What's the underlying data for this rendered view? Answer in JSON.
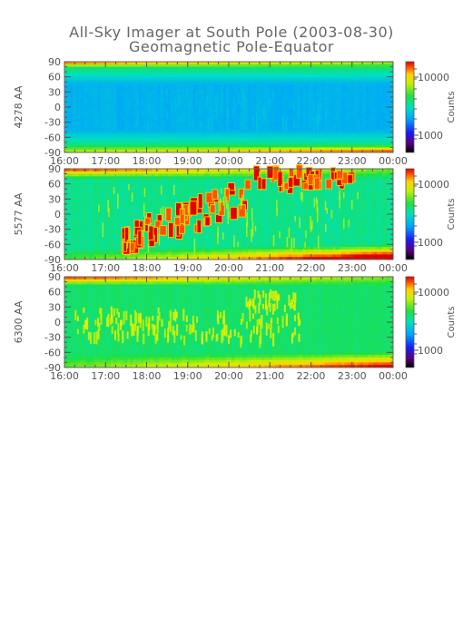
{
  "header": {
    "title": "All-Sky Imager at South Pole (2003-08-30)",
    "subtitle": "Geomagnetic Pole-Equator"
  },
  "chart_data": [
    {
      "type": "heatmap",
      "ylabel": "4278 AA",
      "x_ticks": [
        "16:00",
        "17:00",
        "18:00",
        "19:00",
        "20:00",
        "21:00",
        "22:00",
        "23:00",
        "00:00"
      ],
      "y_ticks": [
        90,
        60,
        30,
        0,
        -30,
        -60,
        -90
      ],
      "ylim": [
        -90,
        90
      ],
      "colorbar": {
        "label": "Counts",
        "ticks": [
          "10000",
          "1000"
        ]
      }
    },
    {
      "type": "heatmap",
      "ylabel": "5577 AA",
      "x_ticks": [
        "16:00",
        "17:00",
        "18:00",
        "19:00",
        "20:00",
        "21:00",
        "22:00",
        "23:00",
        "00:00"
      ],
      "y_ticks": [
        90,
        60,
        30,
        0,
        -30,
        -60,
        -90
      ],
      "ylim": [
        -90,
        90
      ],
      "colorbar": {
        "label": "Counts",
        "ticks": [
          "10000",
          "1000"
        ]
      }
    },
    {
      "type": "heatmap",
      "ylabel": "6300 AA",
      "x_ticks": [
        "16:00",
        "17:00",
        "18:00",
        "19:00",
        "20:00",
        "21:00",
        "22:00",
        "23:00",
        "00:00"
      ],
      "y_ticks": [
        90,
        60,
        30,
        0,
        -30,
        -60,
        -90
      ],
      "ylim": [
        -90,
        90
      ],
      "colorbar": {
        "label": "Counts",
        "ticks": [
          "10000",
          "1000"
        ]
      }
    }
  ]
}
